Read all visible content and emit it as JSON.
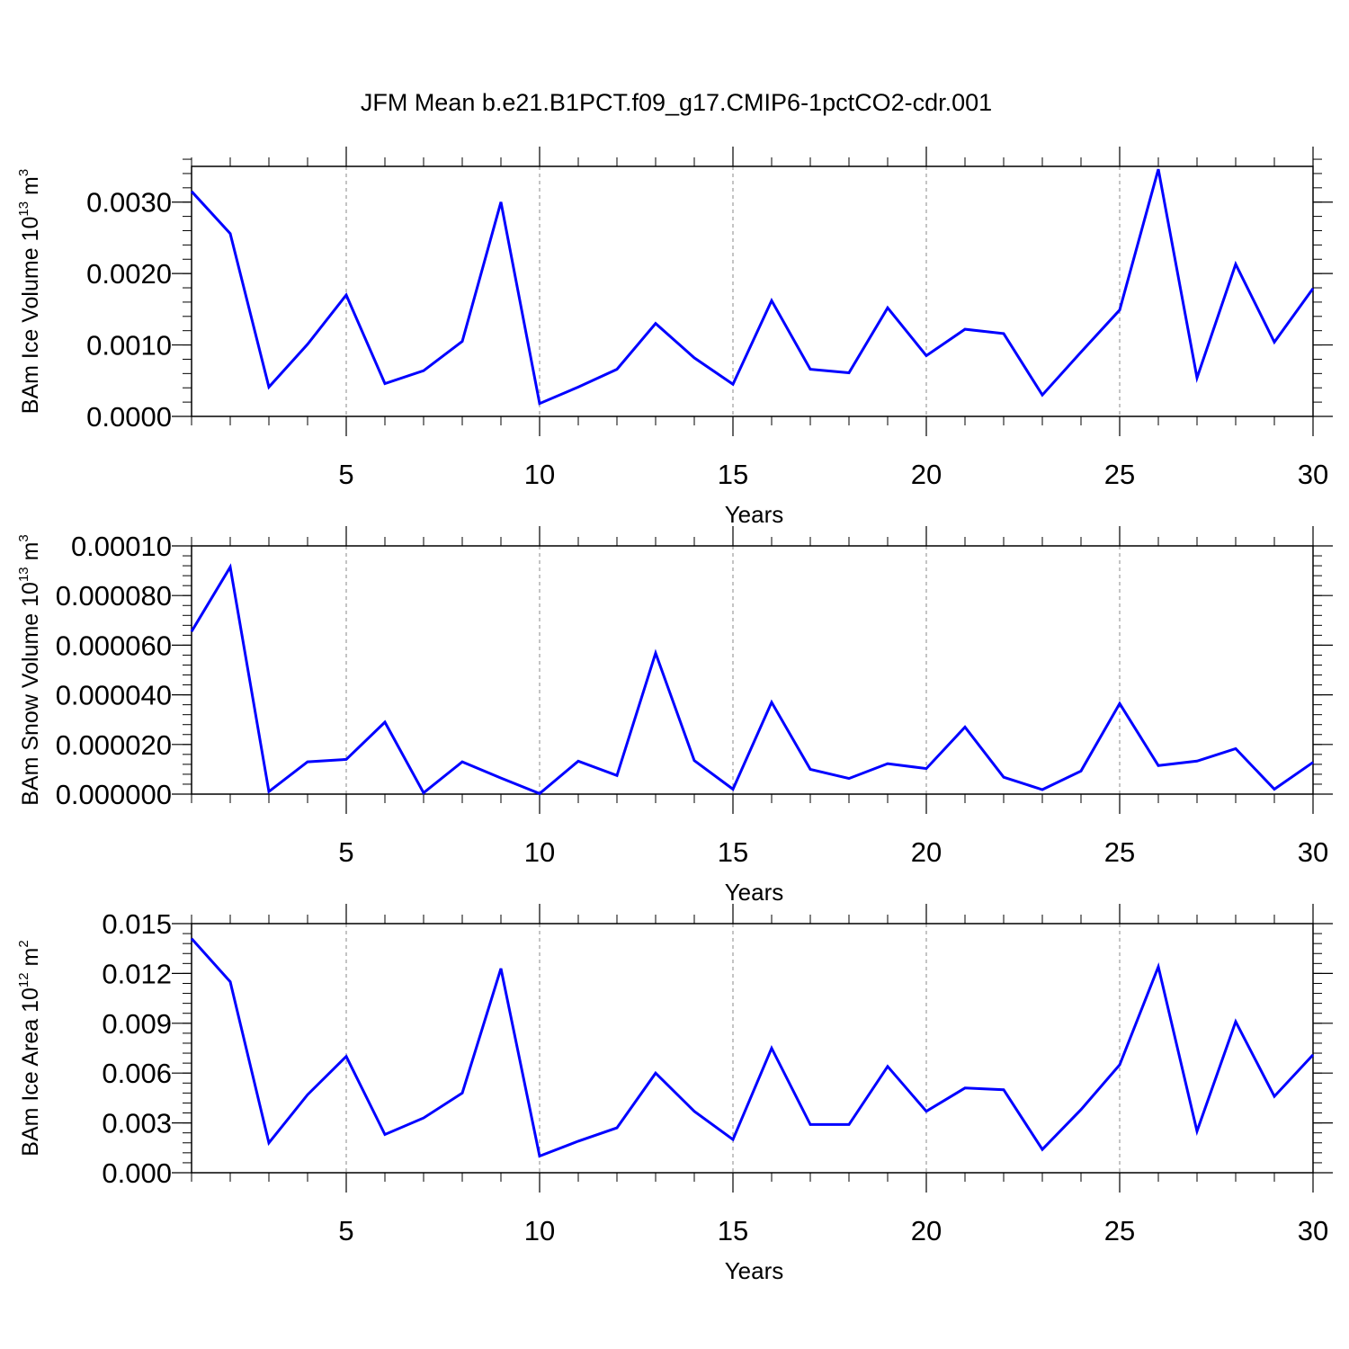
{
  "title": "JFM Mean b.e21.B1PCT.f09_g17.CMIP6-1pctCO2-cdr.001",
  "colors": {
    "line": "#0000ff",
    "frame": "#000000",
    "grid": "#888888",
    "background": "#ffffff"
  },
  "chart_data": [
    {
      "type": "line",
      "ylabel": {
        "text": "BAm Ice Volume 10",
        "exponent": "13",
        "unit": " m",
        "unit_exponent": "3"
      },
      "xlabel": "Years",
      "xlim": [
        1,
        30
      ],
      "x_ticks": [
        5,
        10,
        15,
        20,
        25,
        30
      ],
      "x_tick_labels": [
        "5",
        "10",
        "15",
        "20",
        "25",
        "30"
      ],
      "ylim": [
        0,
        0.0035
      ],
      "y_ticks": [
        0,
        0.001,
        0.002,
        0.003
      ],
      "y_tick_labels": [
        "0.0000",
        "0.0010",
        "0.0020",
        "0.0030"
      ],
      "y_minor_step": 0.0002,
      "vertical_grid": [
        5,
        10,
        15,
        20,
        25
      ],
      "series": [
        {
          "name": "BAm Ice Volume",
          "x": [
            1,
            2,
            3,
            4,
            5,
            6,
            7,
            8,
            9,
            10,
            11,
            12,
            13,
            14,
            15,
            16,
            17,
            18,
            19,
            20,
            21,
            22,
            23,
            24,
            25,
            26,
            27,
            28,
            29,
            30
          ],
          "values": [
            0.00315,
            0.00256,
            0.00041,
            0.00101,
            0.0017,
            0.00046,
            0.00064,
            0.00105,
            0.003,
            0.00018,
            0.00041,
            0.00066,
            0.0013,
            0.00082,
            0.00045,
            0.00162,
            0.00066,
            0.00061,
            0.00152,
            0.00085,
            0.00122,
            0.00116,
            0.0003,
            0.0009,
            0.00149,
            0.00346,
            0.00054,
            0.00213,
            0.00104,
            0.00179
          ]
        }
      ]
    },
    {
      "type": "line",
      "ylabel": {
        "text": "BAm Snow Volume 10",
        "exponent": "13",
        "unit": " m",
        "unit_exponent": "3"
      },
      "xlabel": "Years",
      "xlim": [
        1,
        30
      ],
      "x_ticks": [
        5,
        10,
        15,
        20,
        25,
        30
      ],
      "x_tick_labels": [
        "5",
        "10",
        "15",
        "20",
        "25",
        "30"
      ],
      "ylim": [
        0,
        0.0001
      ],
      "y_ticks": [
        0,
        2e-05,
        4e-05,
        6e-05,
        8e-05,
        0.0001
      ],
      "y_tick_labels": [
        "0.000000",
        "0.000020",
        "0.000040",
        "0.000060",
        "0.000080",
        "0.00010"
      ],
      "y_minor_step": 4e-06,
      "vertical_grid": [
        5,
        10,
        15,
        20,
        25
      ],
      "series": [
        {
          "name": "BAm Snow Volume",
          "x": [
            1,
            2,
            3,
            4,
            5,
            6,
            7,
            8,
            9,
            10,
            11,
            12,
            13,
            14,
            15,
            16,
            17,
            18,
            19,
            20,
            21,
            22,
            23,
            24,
            25,
            26,
            27,
            28,
            29,
            30
          ],
          "values": [
            6.55e-05,
            9.15e-05,
            1e-06,
            1.3e-05,
            1.4e-05,
            2.9e-05,
            5e-07,
            1.3e-05,
            6.5e-06,
            2e-07,
            1.33e-05,
            7.5e-06,
            5.68e-05,
            1.35e-05,
            2e-06,
            3.7e-05,
            1e-05,
            6.3e-06,
            1.23e-05,
            1.03e-05,
            2.7e-05,
            6.8e-06,
            1.8e-06,
            9.3e-06,
            3.65e-05,
            1.15e-05,
            1.33e-05,
            1.83e-05,
            2e-06,
            1.28e-05
          ]
        }
      ]
    },
    {
      "type": "line",
      "ylabel": {
        "text": "BAm Ice Area 10",
        "exponent": "12",
        "unit": " m",
        "unit_exponent": "2"
      },
      "xlabel": "Years",
      "xlim": [
        1,
        30
      ],
      "x_ticks": [
        5,
        10,
        15,
        20,
        25,
        30
      ],
      "x_tick_labels": [
        "5",
        "10",
        "15",
        "20",
        "25",
        "30"
      ],
      "ylim": [
        0,
        0.015
      ],
      "y_ticks": [
        0,
        0.003,
        0.006,
        0.009,
        0.012,
        0.015
      ],
      "y_tick_labels": [
        "0.000",
        "0.003",
        "0.006",
        "0.009",
        "0.012",
        "0.015"
      ],
      "y_minor_step": 0.0006,
      "vertical_grid": [
        5,
        10,
        15,
        20,
        25
      ],
      "series": [
        {
          "name": "BAm Ice Area",
          "x": [
            1,
            2,
            3,
            4,
            5,
            6,
            7,
            8,
            9,
            10,
            11,
            12,
            13,
            14,
            15,
            16,
            17,
            18,
            19,
            20,
            21,
            22,
            23,
            24,
            25,
            26,
            27,
            28,
            29,
            30
          ],
          "values": [
            0.0141,
            0.0115,
            0.0018,
            0.0047,
            0.007,
            0.0023,
            0.0033,
            0.0048,
            0.0123,
            0.001,
            0.0019,
            0.0027,
            0.006,
            0.0037,
            0.002,
            0.0075,
            0.0029,
            0.0029,
            0.0064,
            0.0037,
            0.0051,
            0.005,
            0.0014,
            0.0038,
            0.0065,
            0.0124,
            0.0025,
            0.0091,
            0.0046,
            0.0071
          ]
        }
      ]
    }
  ]
}
